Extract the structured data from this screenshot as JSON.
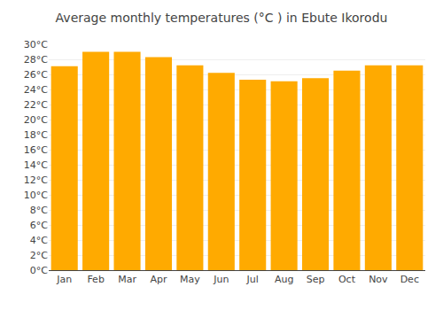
{
  "chart_data": {
    "type": "bar",
    "title": "Average monthly temperatures (°C ) in Ebute Ikorodu",
    "categories": [
      "Jan",
      "Feb",
      "Mar",
      "Apr",
      "May",
      "Jun",
      "Jul",
      "Aug",
      "Sep",
      "Oct",
      "Nov",
      "Dec"
    ],
    "values": [
      27.1,
      29.0,
      29.0,
      28.3,
      27.2,
      26.2,
      25.3,
      25.1,
      25.5,
      26.5,
      27.2,
      27.2
    ],
    "color": "#FFAA00",
    "ylim": [
      0,
      30
    ],
    "yticks": [
      {
        "value": 0,
        "label": "0°C"
      },
      {
        "value": 2,
        "label": "2°C"
      },
      {
        "value": 4,
        "label": "4°C"
      },
      {
        "value": 6,
        "label": "6°C"
      },
      {
        "value": 8,
        "label": "8°C"
      },
      {
        "value": 10,
        "label": "10°C"
      },
      {
        "value": 12,
        "label": "12°C"
      },
      {
        "value": 14,
        "label": "14°C"
      },
      {
        "value": 16,
        "label": "16°C"
      },
      {
        "value": 18,
        "label": "18°C"
      },
      {
        "value": 20,
        "label": "20°C"
      },
      {
        "value": 22,
        "label": "22°C"
      },
      {
        "value": 24,
        "label": "24°C"
      },
      {
        "value": 26,
        "label": "26°C"
      },
      {
        "value": 28,
        "label": "28°C"
      },
      {
        "value": 30,
        "label": "30°C"
      }
    ],
    "grid": true
  }
}
